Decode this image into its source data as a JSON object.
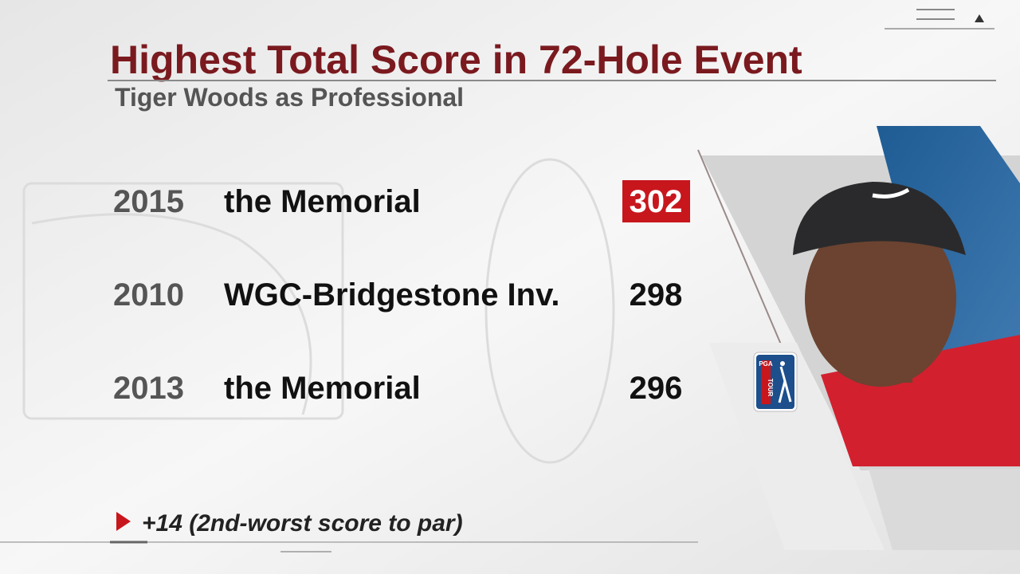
{
  "header": {
    "title": "Highest Total Score in 72-Hole Event",
    "subtitle": "Tiger Woods as Professional"
  },
  "table": {
    "rows": [
      [
        "2015",
        "the Memorial",
        302
      ],
      [
        "2010",
        "WGC-Bridgestone Inv.",
        298
      ],
      [
        "2013",
        "the Memorial",
        296
      ]
    ],
    "highlighted_row": 0,
    "highlight_color": "#c8161d"
  },
  "note": "+14 (2nd-worst score to par)",
  "logo": {
    "top": "PGA",
    "bottom": "TOUR"
  }
}
